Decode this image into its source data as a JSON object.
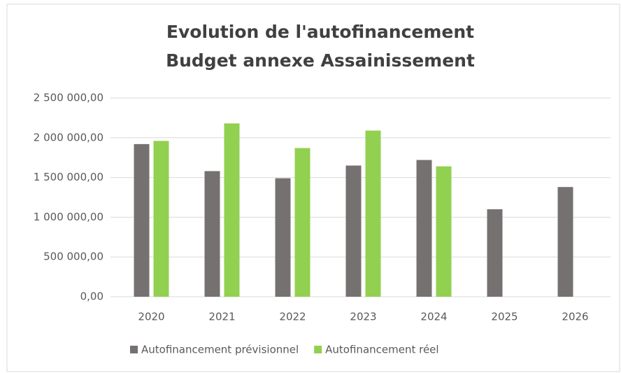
{
  "chart_data": {
    "type": "bar",
    "title": [
      "Evolution de l'autofinancement",
      "Budget annexe Assainissement"
    ],
    "categories": [
      "2020",
      "2021",
      "2022",
      "2023",
      "2024",
      "2025",
      "2026"
    ],
    "series": [
      {
        "name": "Autofinancement prévisionnel",
        "color": "#767171",
        "values": [
          1920000,
          1580000,
          1490000,
          1650000,
          1720000,
          1100000,
          1380000
        ]
      },
      {
        "name": "Autofinancement réel",
        "color": "#92d050",
        "values": [
          1960000,
          2180000,
          1870000,
          2090000,
          1640000,
          null,
          null
        ]
      }
    ],
    "ylim": [
      0,
      2500000
    ],
    "yticks": [
      {
        "value": 0,
        "label": "0,00"
      },
      {
        "value": 500000,
        "label": "500 000,00"
      },
      {
        "value": 1000000,
        "label": "1 000 000,00"
      },
      {
        "value": 1500000,
        "label": "1 500 000,00"
      },
      {
        "value": 2000000,
        "label": "2 000 000,00"
      },
      {
        "value": 2500000,
        "label": "2 500 000,00"
      }
    ],
    "grid": true,
    "legend": "bottom"
  }
}
